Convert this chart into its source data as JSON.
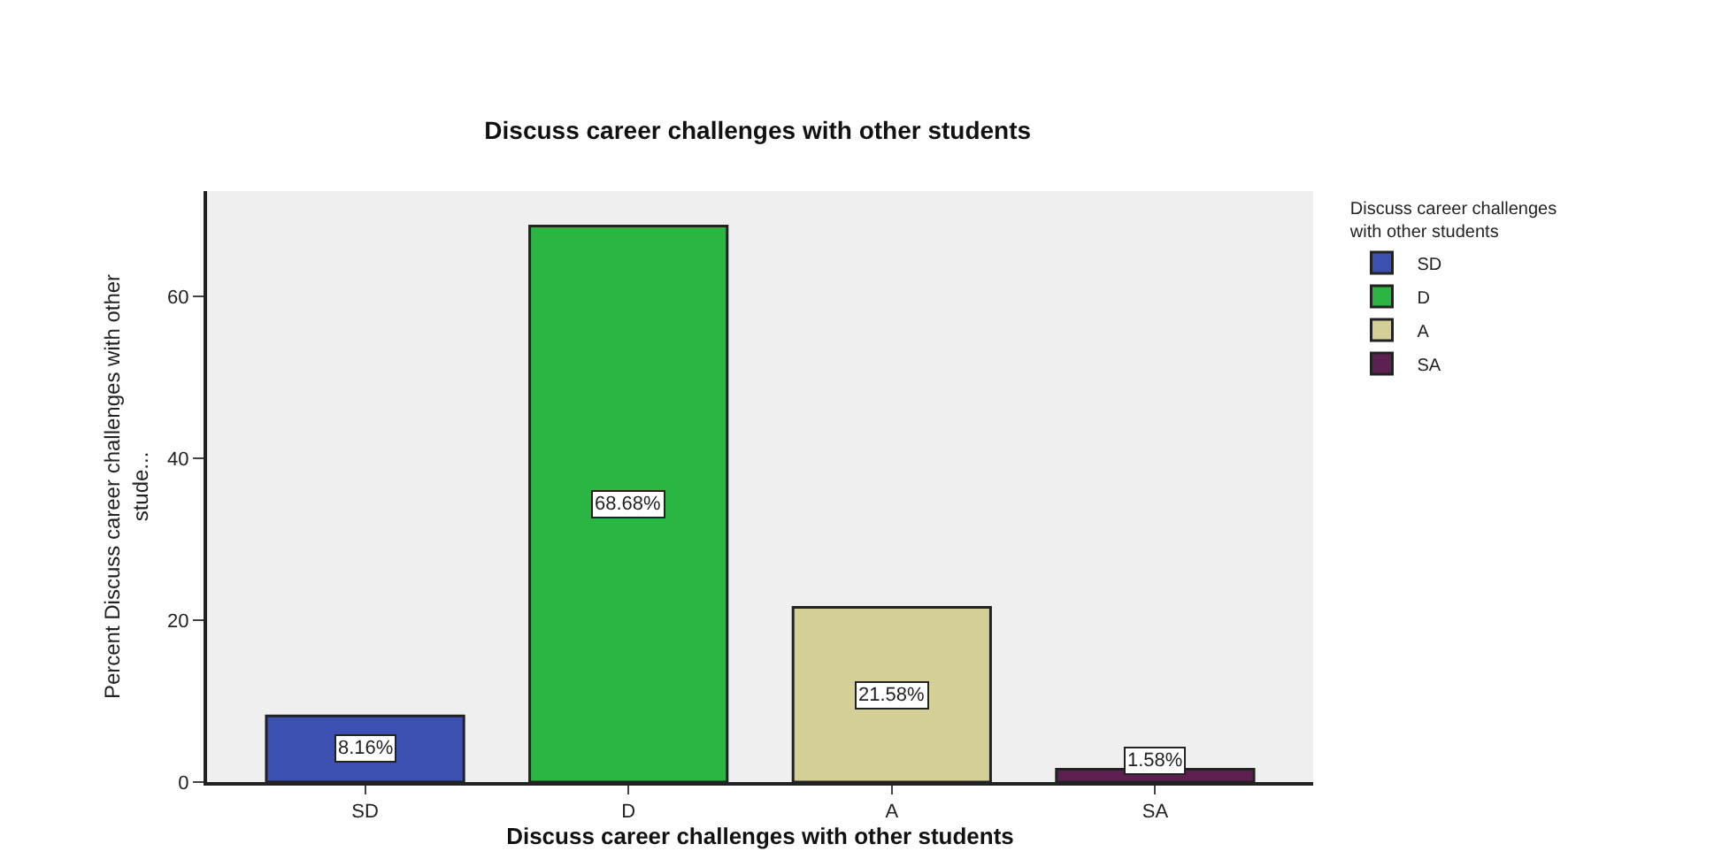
{
  "chart_data": {
    "type": "bar",
    "title": "Discuss career challenges with other students",
    "xlabel": "Discuss career challenges with other students",
    "ylabel": "Percent Discuss career challenges with other stude...",
    "legend_title": "Discuss career challenges with other students",
    "categories": [
      "SD",
      "D",
      "A",
      "SA"
    ],
    "series": [
      {
        "name": "SD",
        "color": "#3b50b0",
        "values": [
          8.16,
          null,
          null,
          null
        ],
        "value_labels": [
          "8.16%",
          null,
          null,
          null
        ]
      },
      {
        "name": "D",
        "color": "#2bb641",
        "values": [
          null,
          68.68,
          null,
          null
        ],
        "value_labels": [
          null,
          "68.68%",
          null,
          null
        ]
      },
      {
        "name": "A",
        "color": "#d3cf97",
        "values": [
          null,
          null,
          21.58,
          null
        ],
        "value_labels": [
          null,
          null,
          "21.58%",
          null
        ]
      },
      {
        "name": "SA",
        "color": "#5c2150",
        "values": [
          null,
          null,
          null,
          1.58
        ],
        "value_labels": [
          null,
          null,
          null,
          "1.58%"
        ]
      }
    ],
    "ylim": [
      0,
      73
    ],
    "yticks": [
      0,
      20,
      40,
      60
    ],
    "grid": false,
    "legend": "right"
  }
}
